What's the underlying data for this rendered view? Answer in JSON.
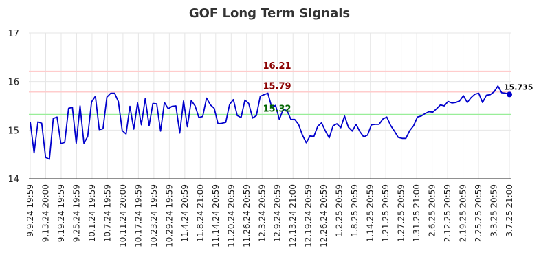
{
  "chart_data": {
    "type": "line",
    "title": "GOF Long Term Signals",
    "ylim": [
      14,
      17
    ],
    "yticks": [
      "14",
      "15",
      "16",
      "17"
    ],
    "xticks": [
      "9.9.24 19:59",
      "9.13.24 20:00",
      "9.19.24 19:59",
      "9.25.24 19:59",
      "10.1.24 19:59",
      "10.7.24 19:59",
      "10.11.24 20:00",
      "10.17.24 19:59",
      "10.23.24 19:59",
      "10.29.24 19:59",
      "11.4.24 20:59",
      "11.8.24 21:00",
      "11.14.24 20:59",
      "11.20.24 20:59",
      "11.26.24 20:59",
      "12.3.24 20:59",
      "12.9.24 20:59",
      "12.13.24 21:00",
      "12.19.24 20:59",
      "12.26.24 20:59",
      "1.2.25 20:59",
      "1.8.25 20:59",
      "1.14.25 20:59",
      "1.21.25 20:59",
      "1.27.25 20:59",
      "1.31.25 21:00",
      "2.6.25 20:59",
      "2.12.25 20:59",
      "2.19.25 20:59",
      "2.25.25 20:59",
      "3.3.25 20:59",
      "3.7.25 21:00"
    ],
    "levels": [
      {
        "value": 16.21,
        "label": "16.21",
        "line_color": "#ffcccc",
        "label_color": "#8b0000"
      },
      {
        "value": 15.79,
        "label": "15.79",
        "line_color": "#ffcccc",
        "label_color": "#8b0000"
      },
      {
        "value": 15.32,
        "label": "15.32",
        "line_color": "#99ee99",
        "label_color": "#006400"
      }
    ],
    "series": [
      {
        "color": "#0000cc",
        "values": [
          15.17,
          14.53,
          15.17,
          15.14,
          14.44,
          14.4,
          15.24,
          15.27,
          14.72,
          14.75,
          15.45,
          15.47,
          14.73,
          15.5,
          14.73,
          14.87,
          15.58,
          15.7,
          15.01,
          15.03,
          15.68,
          15.76,
          15.76,
          15.59,
          14.99,
          14.92,
          15.49,
          15.02,
          15.56,
          15.11,
          15.65,
          15.09,
          15.55,
          15.54,
          14.98,
          15.57,
          15.44,
          15.49,
          15.5,
          14.94,
          15.6,
          15.07,
          15.61,
          15.5,
          15.26,
          15.28,
          15.66,
          15.52,
          15.45,
          15.13,
          15.14,
          15.16,
          15.53,
          15.63,
          15.3,
          15.26,
          15.62,
          15.55,
          15.25,
          15.3,
          15.7,
          15.73,
          15.76,
          15.47,
          15.51,
          15.22,
          15.43,
          15.4,
          15.22,
          15.22,
          15.12,
          14.9,
          14.74,
          14.88,
          14.87,
          15.08,
          15.15,
          14.98,
          14.84,
          15.09,
          15.13,
          15.05,
          15.29,
          15.06,
          14.98,
          15.12,
          14.97,
          14.86,
          14.9,
          15.11,
          15.12,
          15.12,
          15.23,
          15.27,
          15.1,
          14.98,
          14.85,
          14.83,
          14.83,
          14.99,
          15.09,
          15.27,
          15.29,
          15.34,
          15.38,
          15.37,
          15.44,
          15.52,
          15.5,
          15.59,
          15.56,
          15.57,
          15.6,
          15.71,
          15.57,
          15.67,
          15.74,
          15.76,
          15.57,
          15.72,
          15.73,
          15.79,
          15.91,
          15.77,
          15.76,
          15.735
        ]
      }
    ],
    "last_value_label": "15.735"
  }
}
